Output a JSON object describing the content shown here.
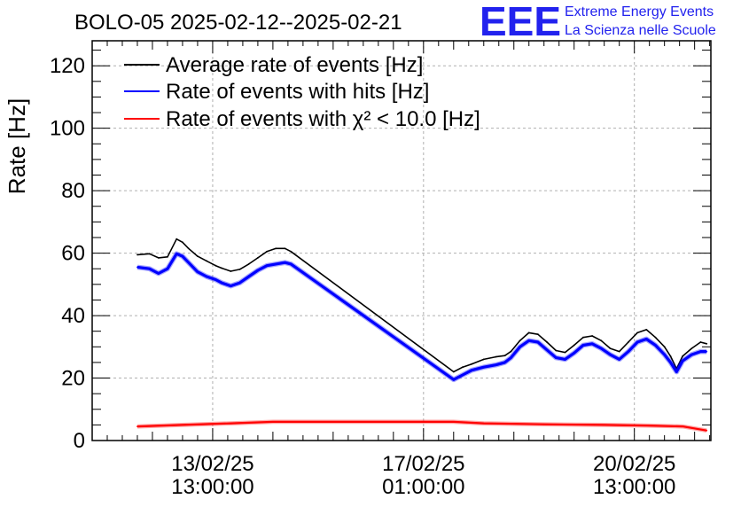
{
  "chart_data": {
    "type": "line",
    "title": "BOLO-05 2025-02-12--2025-02-21",
    "xlabel": "",
    "ylabel": "Rate [Hz]",
    "ylim": [
      0,
      128
    ],
    "yticks": [
      0,
      20,
      40,
      60,
      80,
      100,
      120
    ],
    "xlim_days": [
      0,
      10.27
    ],
    "xticks": [
      {
        "day": 2.0,
        "date": "13/02/25",
        "time": "13:00:00"
      },
      {
        "day": 5.5,
        "date": "17/02/25",
        "time": "01:00:00"
      },
      {
        "day": 9.0,
        "date": "20/02/25",
        "time": "13:00:00"
      }
    ],
    "grid": true,
    "legend_position": "top-left",
    "series": [
      {
        "name": "Average rate of events [Hz]",
        "color": "#000000",
        "points": [
          [
            0.75,
            59.5
          ],
          [
            0.95,
            59.8
          ],
          [
            1.1,
            58.5
          ],
          [
            1.25,
            58.8
          ],
          [
            1.4,
            64.5
          ],
          [
            1.5,
            63.5
          ],
          [
            1.6,
            61.5
          ],
          [
            1.75,
            59
          ],
          [
            1.9,
            57.5
          ],
          [
            2.05,
            56
          ],
          [
            2.15,
            55.2
          ],
          [
            2.3,
            54.2
          ],
          [
            2.45,
            54.8
          ],
          [
            2.6,
            56.5
          ],
          [
            2.75,
            58.5
          ],
          [
            2.9,
            60.5
          ],
          [
            3.05,
            61.5
          ],
          [
            3.2,
            61.5
          ],
          [
            3.3,
            60.5
          ],
          [
            6.0,
            22
          ],
          [
            6.15,
            23.5
          ],
          [
            6.3,
            24.5
          ],
          [
            6.5,
            26
          ],
          [
            6.7,
            26.8
          ],
          [
            6.85,
            27.2
          ],
          [
            6.95,
            28.5
          ],
          [
            7.1,
            32
          ],
          [
            7.25,
            34.5
          ],
          [
            7.4,
            34
          ],
          [
            7.55,
            31.5
          ],
          [
            7.7,
            28.8
          ],
          [
            7.85,
            28.2
          ],
          [
            8.0,
            30.5
          ],
          [
            8.15,
            33
          ],
          [
            8.3,
            33.5
          ],
          [
            8.45,
            32
          ],
          [
            8.6,
            29.5
          ],
          [
            8.75,
            28.5
          ],
          [
            8.9,
            31.5
          ],
          [
            9.05,
            34.5
          ],
          [
            9.2,
            35.5
          ],
          [
            9.35,
            33
          ],
          [
            9.5,
            30
          ],
          [
            9.6,
            27
          ],
          [
            9.7,
            23
          ],
          [
            9.8,
            27
          ],
          [
            9.95,
            29.5
          ],
          [
            10.1,
            31.5
          ],
          [
            10.2,
            31
          ]
        ]
      },
      {
        "name": "Rate of events with hits [Hz]",
        "color": "#0000ff",
        "points": [
          [
            0.75,
            55.5
          ],
          [
            0.95,
            55
          ],
          [
            1.1,
            53.5
          ],
          [
            1.25,
            55
          ],
          [
            1.4,
            59.8
          ],
          [
            1.5,
            59
          ],
          [
            1.6,
            57
          ],
          [
            1.75,
            54
          ],
          [
            1.9,
            52.5
          ],
          [
            2.05,
            51.5
          ],
          [
            2.15,
            50.5
          ],
          [
            2.3,
            49.5
          ],
          [
            2.45,
            50.5
          ],
          [
            2.6,
            52.5
          ],
          [
            2.75,
            54.5
          ],
          [
            2.9,
            56
          ],
          [
            3.05,
            56.5
          ],
          [
            3.2,
            57
          ],
          [
            3.3,
            56.5
          ],
          [
            6.0,
            19.5
          ],
          [
            6.15,
            21
          ],
          [
            6.3,
            22.5
          ],
          [
            6.5,
            23.5
          ],
          [
            6.7,
            24.2
          ],
          [
            6.85,
            25
          ],
          [
            6.95,
            26.5
          ],
          [
            7.1,
            30
          ],
          [
            7.25,
            32
          ],
          [
            7.4,
            31.5
          ],
          [
            7.55,
            29
          ],
          [
            7.7,
            26.5
          ],
          [
            7.85,
            26
          ],
          [
            8.0,
            28
          ],
          [
            8.15,
            30.5
          ],
          [
            8.3,
            31
          ],
          [
            8.45,
            29.5
          ],
          [
            8.6,
            27.5
          ],
          [
            8.75,
            26
          ],
          [
            8.9,
            28.5
          ],
          [
            9.05,
            31.5
          ],
          [
            9.2,
            32.5
          ],
          [
            9.35,
            30.5
          ],
          [
            9.5,
            27.5
          ],
          [
            9.6,
            25
          ],
          [
            9.7,
            22
          ],
          [
            9.8,
            25.5
          ],
          [
            9.95,
            27.5
          ],
          [
            10.1,
            28.5
          ],
          [
            10.2,
            28.5
          ]
        ]
      },
      {
        "name": "Rate of events with χ² < 10.0 [Hz]",
        "color": "#ff0000",
        "points": [
          [
            0.75,
            4.5
          ],
          [
            1.5,
            5.0
          ],
          [
            2.3,
            5.5
          ],
          [
            3.0,
            6.0
          ],
          [
            3.3,
            6.0
          ],
          [
            6.0,
            6.0
          ],
          [
            6.5,
            5.5
          ],
          [
            7.5,
            5.2
          ],
          [
            8.5,
            5.0
          ],
          [
            9.2,
            4.8
          ],
          [
            9.8,
            4.5
          ],
          [
            10.2,
            3.2
          ]
        ]
      }
    ]
  },
  "logo": {
    "mark": "EEE",
    "line1": "Extreme Energy Events",
    "line2": "La Scienza nelle Scuole"
  }
}
